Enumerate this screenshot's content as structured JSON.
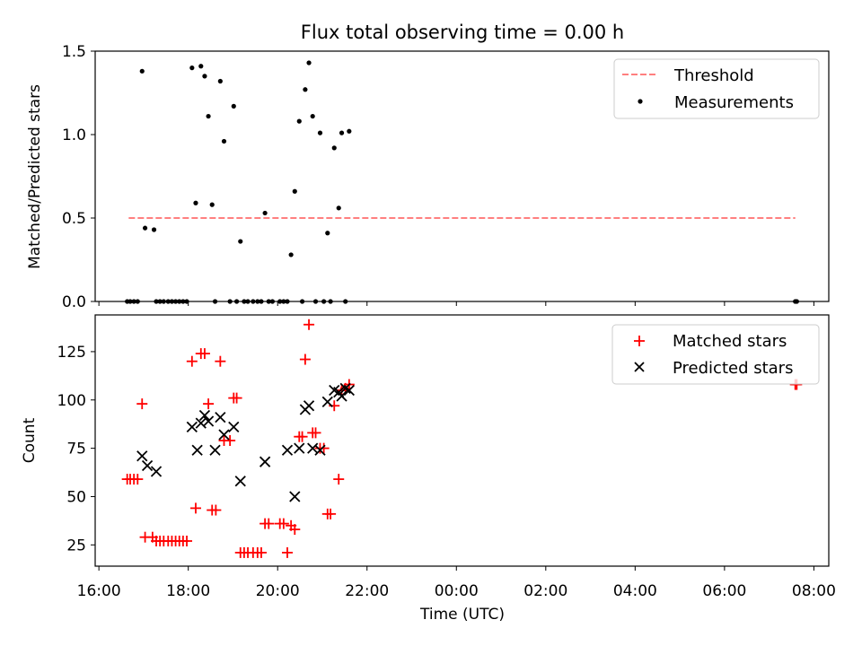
{
  "chart_data": [
    {
      "type": "scatter",
      "title": "Flux total observing time = 0.00 h",
      "xlabel": "",
      "ylabel": "Matched/Predicted stars",
      "x_unit": "time (UTC, starting 16:00)",
      "xlim": [
        "15:55",
        "08:20"
      ],
      "ylim": [
        0,
        1.5
      ],
      "yticks": [
        0.0,
        0.5,
        1.0,
        1.5
      ],
      "ytick_labels": [
        "0.0",
        "0.5",
        "1.0",
        "1.5"
      ],
      "legend": {
        "position": "top-right",
        "entries": [
          "Threshold",
          "Measurements"
        ]
      },
      "threshold": {
        "name": "Threshold",
        "value": 0.5,
        "x_start": "16:40",
        "x_end": "07:35",
        "color": "#ff7f7f",
        "style": "dashed"
      },
      "series": [
        {
          "name": "Measurements",
          "color": "#000000",
          "marker": "dot",
          "points": [
            [
              "16:38",
              0.0
            ],
            [
              "16:42",
              0.0
            ],
            [
              "16:47",
              0.0
            ],
            [
              "16:52",
              0.0
            ],
            [
              "16:58",
              1.38
            ],
            [
              "17:02",
              0.44
            ],
            [
              "17:14",
              0.43
            ],
            [
              "17:17",
              0.0
            ],
            [
              "17:22",
              0.0
            ],
            [
              "17:27",
              0.0
            ],
            [
              "17:33",
              0.0
            ],
            [
              "17:38",
              0.0
            ],
            [
              "17:43",
              0.0
            ],
            [
              "17:48",
              0.0
            ],
            [
              "17:53",
              0.0
            ],
            [
              "17:58",
              0.0
            ],
            [
              "18:05",
              1.4
            ],
            [
              "18:10",
              0.59
            ],
            [
              "18:17",
              1.41
            ],
            [
              "18:22",
              1.35
            ],
            [
              "18:27",
              1.11
            ],
            [
              "18:32",
              0.58
            ],
            [
              "18:36",
              0.0
            ],
            [
              "18:43",
              1.32
            ],
            [
              "18:48",
              0.96
            ],
            [
              "18:56",
              0.0
            ],
            [
              "19:01",
              1.17
            ],
            [
              "19:05",
              0.0
            ],
            [
              "19:10",
              0.36
            ],
            [
              "19:15",
              0.0
            ],
            [
              "19:20",
              0.0
            ],
            [
              "19:27",
              0.0
            ],
            [
              "19:33",
              0.0
            ],
            [
              "19:38",
              0.0
            ],
            [
              "19:43",
              0.53
            ],
            [
              "19:48",
              0.0
            ],
            [
              "19:53",
              0.0
            ],
            [
              "20:03",
              0.0
            ],
            [
              "20:08",
              0.0
            ],
            [
              "20:13",
              0.0
            ],
            [
              "20:18",
              0.28
            ],
            [
              "20:23",
              0.66
            ],
            [
              "20:29",
              1.08
            ],
            [
              "20:33",
              0.0
            ],
            [
              "20:37",
              1.27
            ],
            [
              "20:42",
              1.43
            ],
            [
              "20:47",
              1.11
            ],
            [
              "20:51",
              0.0
            ],
            [
              "20:57",
              1.01
            ],
            [
              "21:02",
              0.0
            ],
            [
              "21:07",
              0.41
            ],
            [
              "21:11",
              0.0
            ],
            [
              "21:16",
              0.92
            ],
            [
              "21:22",
              0.56
            ],
            [
              "21:26",
              1.01
            ],
            [
              "21:31",
              0.0
            ],
            [
              "21:36",
              1.02
            ],
            [
              "07:35",
              0.0
            ],
            [
              "07:37",
              0.0
            ]
          ]
        }
      ]
    },
    {
      "type": "scatter",
      "title": "",
      "xlabel": "Time (UTC)",
      "ylabel": "Count",
      "x_unit": "time (UTC, starting 16:00)",
      "xlim": [
        "15:55",
        "08:20"
      ],
      "ylim": [
        14,
        144
      ],
      "yticks": [
        25,
        50,
        75,
        100,
        125
      ],
      "ytick_labels": [
        "25",
        "50",
        "75",
        "100",
        "125"
      ],
      "xticks": [
        "16:00",
        "18:00",
        "20:00",
        "22:00",
        "00:00",
        "02:00",
        "04:00",
        "06:00",
        "08:00"
      ],
      "xtick_labels": [
        "16:00",
        "18:00",
        "20:00",
        "22:00",
        "00:00",
        "02:00",
        "04:00",
        "06:00",
        "08:00"
      ],
      "legend": {
        "position": "top-right",
        "entries": [
          "Matched stars",
          "Predicted stars"
        ]
      },
      "series": [
        {
          "name": "Matched stars",
          "color": "#ff0000",
          "marker": "plus",
          "points": [
            [
              "16:38",
              59
            ],
            [
              "16:42",
              59
            ],
            [
              "16:47",
              59
            ],
            [
              "16:52",
              59
            ],
            [
              "16:58",
              98
            ],
            [
              "17:02",
              29
            ],
            [
              "17:12",
              29
            ],
            [
              "17:17",
              27
            ],
            [
              "17:22",
              27
            ],
            [
              "17:27",
              27
            ],
            [
              "17:33",
              27
            ],
            [
              "17:38",
              27
            ],
            [
              "17:43",
              27
            ],
            [
              "17:48",
              27
            ],
            [
              "17:53",
              27
            ],
            [
              "17:58",
              27
            ],
            [
              "18:05",
              120
            ],
            [
              "18:10",
              44
            ],
            [
              "18:17",
              124
            ],
            [
              "18:22",
              124
            ],
            [
              "18:27",
              98
            ],
            [
              "18:32",
              43
            ],
            [
              "18:37",
              43
            ],
            [
              "18:43",
              120
            ],
            [
              "18:48",
              79
            ],
            [
              "18:56",
              79
            ],
            [
              "19:01",
              101
            ],
            [
              "19:05",
              101
            ],
            [
              "19:10",
              21
            ],
            [
              "19:15",
              21
            ],
            [
              "19:20",
              21
            ],
            [
              "19:27",
              21
            ],
            [
              "19:33",
              21
            ],
            [
              "19:38",
              21
            ],
            [
              "19:43",
              36
            ],
            [
              "19:48",
              36
            ],
            [
              "20:03",
              36
            ],
            [
              "20:08",
              36
            ],
            [
              "20:13",
              21
            ],
            [
              "20:18",
              35
            ],
            [
              "20:23",
              33
            ],
            [
              "20:29",
              81
            ],
            [
              "20:33",
              81
            ],
            [
              "20:37",
              121
            ],
            [
              "20:42",
              139
            ],
            [
              "20:47",
              83
            ],
            [
              "20:51",
              83
            ],
            [
              "20:57",
              75
            ],
            [
              "21:02",
              75
            ],
            [
              "21:07",
              41
            ],
            [
              "21:11",
              41
            ],
            [
              "21:16",
              97
            ],
            [
              "21:22",
              59
            ],
            [
              "21:26",
              105
            ],
            [
              "21:31",
              106
            ],
            [
              "21:36",
              108
            ],
            [
              "07:35",
              108
            ],
            [
              "07:37",
              108
            ]
          ]
        },
        {
          "name": "Predicted stars",
          "color": "#000000",
          "marker": "x",
          "points": [
            [
              "16:58",
              71
            ],
            [
              "17:05",
              66
            ],
            [
              "17:17",
              63
            ],
            [
              "18:05",
              86
            ],
            [
              "18:12",
              74
            ],
            [
              "18:17",
              88
            ],
            [
              "18:22",
              92
            ],
            [
              "18:27",
              89
            ],
            [
              "18:36",
              74
            ],
            [
              "18:43",
              91
            ],
            [
              "18:48",
              82
            ],
            [
              "19:01",
              86
            ],
            [
              "19:10",
              58
            ],
            [
              "19:43",
              68
            ],
            [
              "20:13",
              74
            ],
            [
              "20:23",
              50
            ],
            [
              "20:29",
              75
            ],
            [
              "20:37",
              95
            ],
            [
              "20:42",
              97
            ],
            [
              "20:47",
              75
            ],
            [
              "20:57",
              74
            ],
            [
              "21:07",
              99
            ],
            [
              "21:16",
              105
            ],
            [
              "21:22",
              104
            ],
            [
              "21:26",
              102
            ],
            [
              "21:31",
              106
            ],
            [
              "21:36",
              105
            ]
          ]
        }
      ]
    }
  ]
}
